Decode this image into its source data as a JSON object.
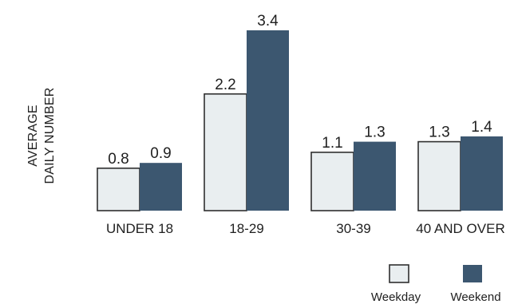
{
  "chart_data": {
    "type": "bar",
    "ylabel": [
      "AVERAGE",
      "DAILY NUMBER"
    ],
    "categories": [
      "UNDER 18",
      "18-29",
      "30-39",
      "40 AND OVER"
    ],
    "series": [
      {
        "name": "Weekday",
        "values": [
          0.8,
          2.2,
          1.1,
          1.3
        ],
        "color": "#e9eef0"
      },
      {
        "name": "Weekend",
        "values": [
          0.9,
          3.4,
          1.3,
          1.4
        ],
        "color": "#3c5770"
      }
    ],
    "value_labels": [
      [
        "0.8",
        "2.2",
        "1.1",
        "1.3"
      ],
      [
        "0.9",
        "3.4",
        "1.3",
        "1.4"
      ]
    ],
    "ylim": [
      0,
      3.4
    ],
    "grid": false,
    "legend_position": "bottom-right"
  }
}
